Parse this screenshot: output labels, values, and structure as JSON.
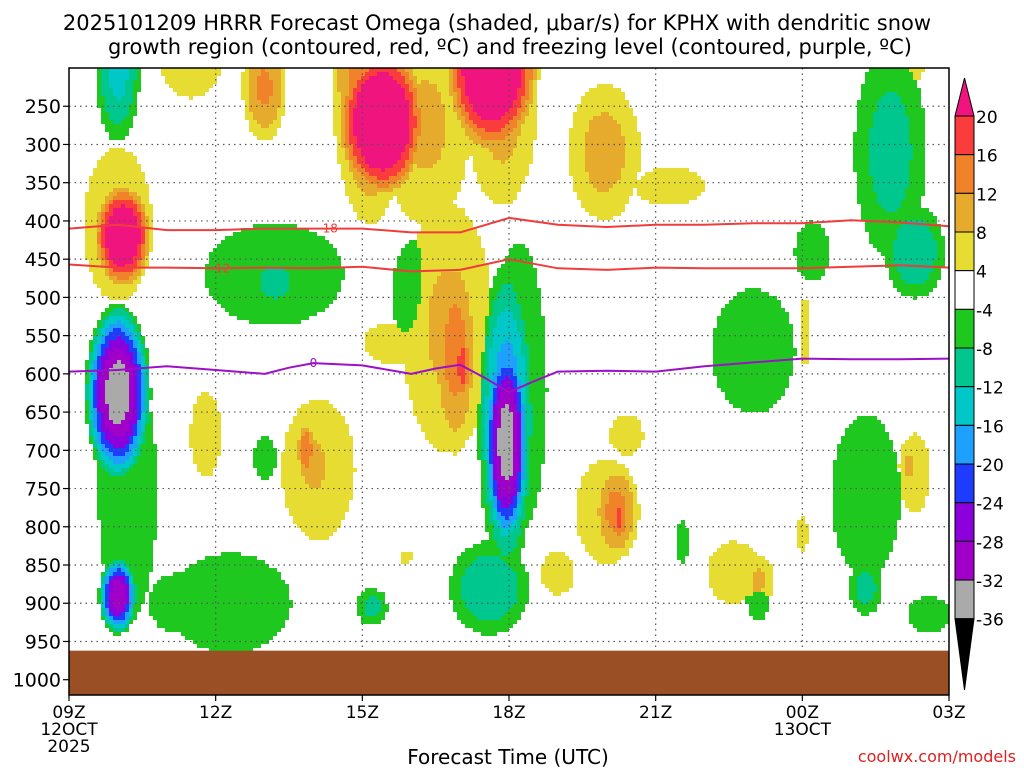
{
  "chart_data": {
    "type": "heatmap",
    "title_line1": "2025101209 HRRR Forecast Omega (shaded, μbar/s) for KPHX with dendritic snow",
    "title_line2": "growth region (contoured, red, ºC) and freezing level (contoured, purple, ºC)",
    "xlabel": "Forecast Time (UTC)",
    "ylabel": "",
    "x_ticks": [
      {
        "hour": 0,
        "label": "09Z",
        "sub": [
          "12OCT",
          "2025"
        ]
      },
      {
        "hour": 3,
        "label": "12Z",
        "sub": []
      },
      {
        "hour": 6,
        "label": "15Z",
        "sub": []
      },
      {
        "hour": 9,
        "label": "18Z",
        "sub": []
      },
      {
        "hour": 12,
        "label": "21Z",
        "sub": []
      },
      {
        "hour": 15,
        "label": "00Z",
        "sub": [
          "13OCT"
        ]
      },
      {
        "hour": 18,
        "label": "03Z",
        "sub": []
      }
    ],
    "xlim": [
      0,
      18
    ],
    "y_ticks": [
      250,
      300,
      350,
      400,
      450,
      500,
      550,
      600,
      650,
      700,
      750,
      800,
      850,
      900,
      950,
      1000
    ],
    "ylim": [
      200,
      1020
    ],
    "ground_level_hpa": 962,
    "colorbar": {
      "labels": [
        "20",
        "16",
        "12",
        "8",
        "4",
        "-4",
        "-8",
        "-12",
        "-16",
        "-20",
        "-24",
        "-28",
        "-32",
        "-36"
      ],
      "bins": [
        {
          "low": 16,
          "high": 20,
          "color": "#fa3c3c"
        },
        {
          "low": 12,
          "high": 16,
          "color": "#f0822a"
        },
        {
          "low": 8,
          "high": 12,
          "color": "#e6aa2c"
        },
        {
          "low": 4,
          "high": 8,
          "color": "#e6dc32"
        },
        {
          "low": -4,
          "high": 4,
          "color": "#ffffff"
        },
        {
          "low": -8,
          "high": -4,
          "color": "#1ec81e"
        },
        {
          "low": -12,
          "high": -8,
          "color": "#00c78e"
        },
        {
          "low": -16,
          "high": -12,
          "color": "#00c8c8"
        },
        {
          "low": -20,
          "high": -16,
          "color": "#1ea0ff"
        },
        {
          "low": -24,
          "high": -20,
          "color": "#1e3cff"
        },
        {
          "low": -28,
          "high": -24,
          "color": "#8c00dc"
        },
        {
          "low": -32,
          "high": -28,
          "color": "#a000c8"
        },
        {
          "low": -36,
          "high": -32,
          "color": "#aaaaaa"
        }
      ],
      "top_arrow_color": "#f0147f",
      "bottom_arrow_color": "#000000"
    },
    "omega_field": [
      {
        "x": 1.0,
        "p": 195,
        "rx": 0.55,
        "rp": 120,
        "peak": -14
      },
      {
        "x": 2.5,
        "p": 190,
        "rx": 0.9,
        "rp": 70,
        "peak": 8
      },
      {
        "x": 4.0,
        "p": 225,
        "rx": 0.55,
        "rp": 85,
        "peak": 13
      },
      {
        "x": 6.15,
        "p": 205,
        "rx": 0.9,
        "rp": 230,
        "peak": 16
      },
      {
        "x": 7.3,
        "p": 275,
        "rx": 1.2,
        "rp": 175,
        "peak": 9
      },
      {
        "x": 8.85,
        "p": 245,
        "rx": 0.95,
        "rp": 175,
        "peak": 10
      },
      {
        "x": 8.65,
        "p": 195,
        "rx": 1.05,
        "rp": 130,
        "peak": 30
      },
      {
        "x": 6.4,
        "p": 270,
        "rx": 1.0,
        "rp": 110,
        "peak": 30
      },
      {
        "x": 10.95,
        "p": 310,
        "rx": 0.95,
        "rp": 115,
        "peak": 10
      },
      {
        "x": 12.3,
        "p": 355,
        "rx": 1.6,
        "rp": 55,
        "peak": 5
      },
      {
        "x": 16.8,
        "p": 310,
        "rx": 0.95,
        "rp": 180,
        "peak": -10
      },
      {
        "x": 17.3,
        "p": 440,
        "rx": 0.75,
        "rp": 75,
        "peak": -12
      },
      {
        "x": 17.3,
        "p": 200,
        "rx": 0.4,
        "rp": 35,
        "peak": 5
      },
      {
        "x": 1.0,
        "p": 405,
        "rx": 0.95,
        "rp": 135,
        "peak": 9
      },
      {
        "x": 1.1,
        "p": 420,
        "rx": 0.65,
        "rp": 75,
        "peak": 28
      },
      {
        "x": 4.2,
        "p": 470,
        "rx": 2.0,
        "rp": 95,
        "peak": -8
      },
      {
        "x": 4.2,
        "p": 480,
        "rx": 0.6,
        "rp": 40,
        "peak": -11
      },
      {
        "x": 7.1,
        "p": 495,
        "rx": 0.75,
        "rp": 110,
        "peak": -7
      },
      {
        "x": 15.2,
        "p": 440,
        "rx": 0.5,
        "rp": 55,
        "peak": -8
      },
      {
        "x": 15.05,
        "p": 545,
        "rx": 0.2,
        "rp": 80,
        "peak": 6
      },
      {
        "x": 7.75,
        "p": 540,
        "rx": 1.25,
        "rp": 220,
        "peak": 9
      },
      {
        "x": 7.9,
        "p": 570,
        "rx": 0.55,
        "rp": 160,
        "peak": 14
      },
      {
        "x": 8.05,
        "p": 590,
        "rx": 0.2,
        "rp": 50,
        "peak": 20
      },
      {
        "x": 6.6,
        "p": 560,
        "rx": 1.3,
        "rp": 60,
        "peak": 5
      },
      {
        "x": 5.1,
        "p": 725,
        "rx": 1.3,
        "rp": 160,
        "peak": 6
      },
      {
        "x": 5.0,
        "p": 720,
        "rx": 0.7,
        "rp": 95,
        "peak": 9
      },
      {
        "x": 4.85,
        "p": 700,
        "rx": 0.22,
        "rp": 45,
        "peak": 16
      },
      {
        "x": 2.8,
        "p": 680,
        "rx": 0.55,
        "rp": 95,
        "peak": 6
      },
      {
        "x": 1.2,
        "p": 755,
        "rx": 0.85,
        "rp": 240,
        "peak": -8
      },
      {
        "x": 1.0,
        "p": 625,
        "rx": 0.72,
        "rp": 125,
        "peak": -36
      },
      {
        "x": 1.0,
        "p": 890,
        "rx": 0.42,
        "rp": 55,
        "peak": -32
      },
      {
        "x": 3.3,
        "p": 900,
        "rx": 1.9,
        "rp": 100,
        "peak": -7
      },
      {
        "x": 2.2,
        "p": 900,
        "rx": 0.8,
        "rp": 55,
        "peak": -8
      },
      {
        "x": 4.0,
        "p": 710,
        "rx": 0.35,
        "rp": 45,
        "peak": -7
      },
      {
        "x": 6.2,
        "p": 905,
        "rx": 0.4,
        "rp": 32,
        "peak": -10
      },
      {
        "x": 6.9,
        "p": 840,
        "rx": 0.25,
        "rp": 20,
        "peak": 5
      },
      {
        "x": 9.2,
        "p": 620,
        "rx": 1.0,
        "rp": 330,
        "peak": -6
      },
      {
        "x": 8.95,
        "p": 660,
        "rx": 0.65,
        "rp": 230,
        "peak": -20
      },
      {
        "x": 8.95,
        "p": 690,
        "rx": 0.5,
        "rp": 150,
        "peak": -36
      },
      {
        "x": 8.6,
        "p": 880,
        "rx": 1.0,
        "rp": 75,
        "peak": -12
      },
      {
        "x": 11.0,
        "p": 780,
        "rx": 1.1,
        "rp": 120,
        "peak": 6
      },
      {
        "x": 11.2,
        "p": 780,
        "rx": 0.55,
        "rp": 75,
        "peak": 14
      },
      {
        "x": 11.25,
        "p": 790,
        "rx": 0.2,
        "rp": 40,
        "peak": 18
      },
      {
        "x": 10.0,
        "p": 860,
        "rx": 0.6,
        "rp": 50,
        "peak": 6
      },
      {
        "x": 11.4,
        "p": 680,
        "rx": 0.6,
        "rp": 45,
        "peak": 6
      },
      {
        "x": 12.55,
        "p": 820,
        "rx": 0.18,
        "rp": 45,
        "peak": -7
      },
      {
        "x": 14.0,
        "p": 570,
        "rx": 1.3,
        "rp": 125,
        "peak": -7
      },
      {
        "x": 13.6,
        "p": 860,
        "rx": 0.95,
        "rp": 70,
        "peak": 6
      },
      {
        "x": 14.1,
        "p": 870,
        "rx": 0.45,
        "rp": 45,
        "peak": 9
      },
      {
        "x": 14.1,
        "p": 890,
        "rx": 0.35,
        "rp": 45,
        "peak": -8
      },
      {
        "x": 16.3,
        "p": 760,
        "rx": 1.0,
        "rp": 150,
        "peak": -8
      },
      {
        "x": 16.3,
        "p": 880,
        "rx": 0.45,
        "rp": 45,
        "peak": -10
      },
      {
        "x": 17.3,
        "p": 730,
        "rx": 0.55,
        "rp": 90,
        "peak": 6
      },
      {
        "x": 17.2,
        "p": 720,
        "rx": 0.3,
        "rp": 45,
        "peak": 9
      },
      {
        "x": 16.1,
        "p": 690,
        "rx": 0.35,
        "rp": 40,
        "peak": 5
      },
      {
        "x": 15.0,
        "p": 810,
        "rx": 0.25,
        "rp": 50,
        "peak": 5
      },
      {
        "x": 17.6,
        "p": 915,
        "rx": 0.7,
        "rp": 35,
        "peak": -7
      }
    ],
    "contours": [
      {
        "label": "-18",
        "color": "#f03c3c",
        "label_x": 5.3,
        "points": [
          [
            0,
            410
          ],
          [
            1,
            405
          ],
          [
            2,
            412
          ],
          [
            3,
            412
          ],
          [
            4,
            410
          ],
          [
            5,
            410
          ],
          [
            6,
            410
          ],
          [
            7,
            415
          ],
          [
            8,
            415
          ],
          [
            9,
            396
          ],
          [
            10,
            405
          ],
          [
            11,
            408
          ],
          [
            12,
            405
          ],
          [
            13,
            405
          ],
          [
            14,
            403
          ],
          [
            15,
            403
          ],
          [
            16,
            399
          ],
          [
            17,
            402
          ],
          [
            18,
            407
          ]
        ]
      },
      {
        "label": "-12",
        "color": "#f03c3c",
        "label_x": 3.1,
        "points": [
          [
            0,
            457
          ],
          [
            1,
            461
          ],
          [
            2,
            461
          ],
          [
            3,
            462
          ],
          [
            4,
            461
          ],
          [
            5,
            462
          ],
          [
            6,
            460
          ],
          [
            7,
            466
          ],
          [
            8,
            464
          ],
          [
            9,
            450
          ],
          [
            10,
            462
          ],
          [
            11,
            464
          ],
          [
            12,
            461
          ],
          [
            13,
            462
          ],
          [
            14,
            462
          ],
          [
            15,
            462
          ],
          [
            16,
            460
          ],
          [
            17,
            458
          ],
          [
            18,
            461
          ]
        ]
      },
      {
        "label": "0",
        "color": "#9c10c8",
        "label_x": 5.0,
        "points": [
          [
            0,
            597
          ],
          [
            1,
            595
          ],
          [
            2,
            590
          ],
          [
            3,
            595
          ],
          [
            4,
            600
          ],
          [
            4.5,
            592
          ],
          [
            5,
            586
          ],
          [
            6,
            589
          ],
          [
            7,
            600
          ],
          [
            7.5,
            593
          ],
          [
            8,
            588
          ],
          [
            8.5,
            605
          ],
          [
            9,
            624
          ],
          [
            9.5,
            610
          ],
          [
            10,
            597
          ],
          [
            11,
            596
          ],
          [
            12,
            597
          ],
          [
            13,
            590
          ],
          [
            14,
            585
          ],
          [
            15,
            580
          ],
          [
            16,
            581
          ],
          [
            17,
            581
          ],
          [
            18,
            580
          ]
        ]
      }
    ]
  },
  "footer": {
    "site_credit": "coolwx.com/models"
  },
  "colors": {
    "frame": "#000000",
    "gridline": "#555555",
    "ground": "#9a4f24",
    "site_text": "#e02020"
  }
}
